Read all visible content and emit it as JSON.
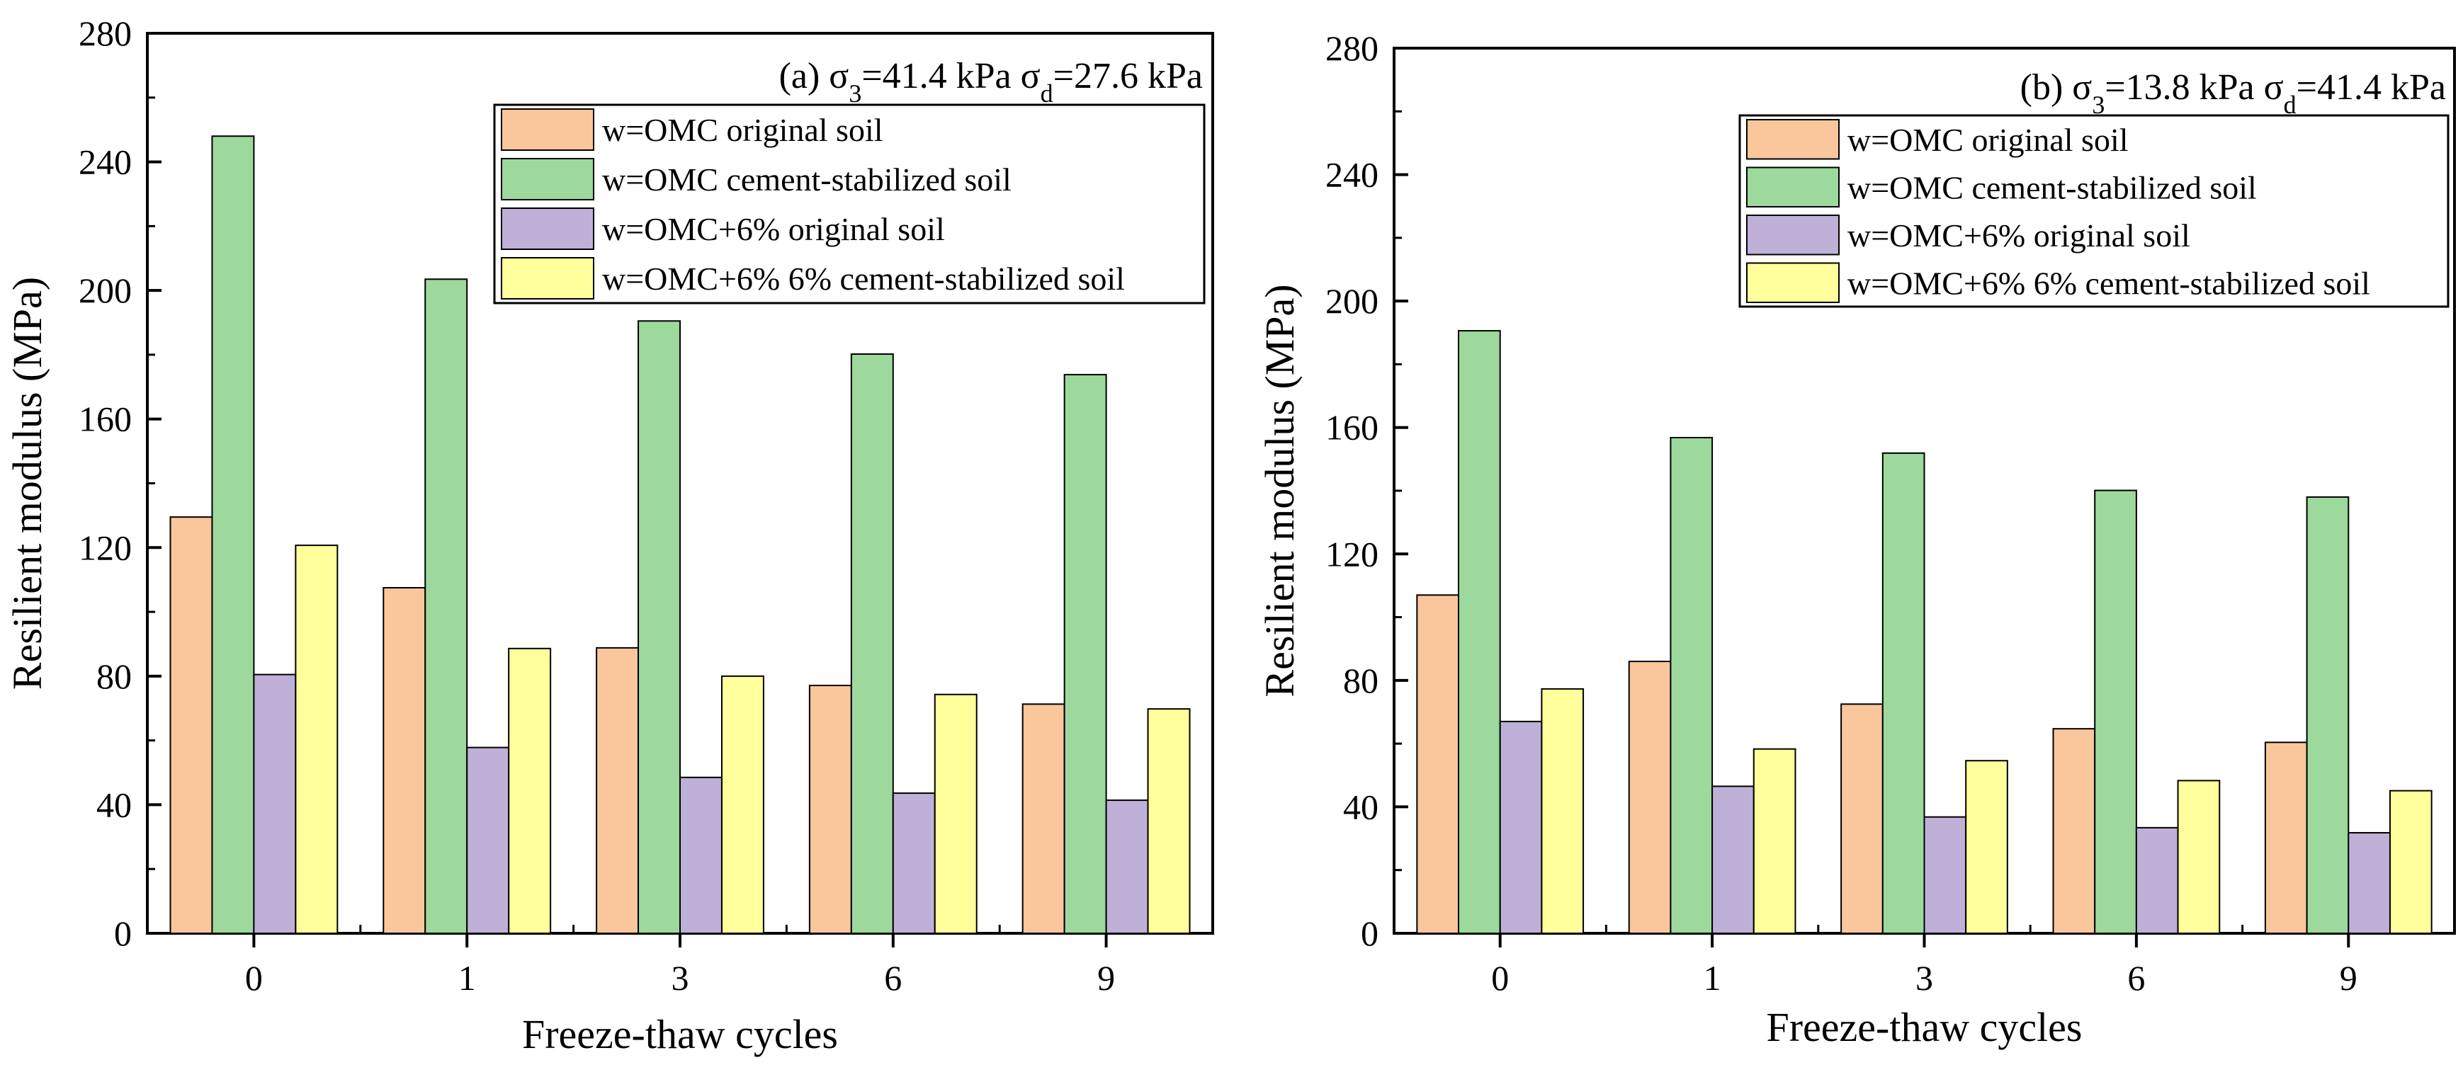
{
  "chart_data": [
    {
      "type": "bar",
      "panel_label": "(a) ",
      "title_parts": [
        "σ",
        "3",
        "=41.4 kPa σ",
        "d",
        "=27.6 kPa"
      ],
      "xlabel": "Freeze-thaw cycles",
      "ylabel": "Resilient modulus (MPa)",
      "categories": [
        "0",
        "1",
        "3",
        "6",
        "9"
      ],
      "ylim": [
        0,
        280
      ],
      "yticks": [
        0,
        40,
        80,
        120,
        160,
        200,
        240,
        280
      ],
      "legend_position": "top-right",
      "series": [
        {
          "name": "w=OMC original soil",
          "color": "#f9c79b",
          "values": [
            129.5,
            107.5,
            88.8,
            77.1,
            71.3
          ]
        },
        {
          "name": "w=OMC cement-stabilized soil",
          "color": "#9dd89c",
          "values": [
            248.0,
            203.5,
            190.5,
            180.2,
            173.8
          ]
        },
        {
          "name": "w=OMC+6% original soil",
          "color": "#bfb0d8",
          "values": [
            80.5,
            57.8,
            48.5,
            43.6,
            41.4
          ]
        },
        {
          "name": "w=OMC+6% 6% cement-stabilized soil",
          "color": "#ffff9b",
          "values": [
            120.7,
            88.6,
            80.0,
            74.3,
            69.8
          ]
        }
      ]
    },
    {
      "type": "bar",
      "panel_label": "(b) ",
      "title_parts": [
        "σ",
        "3",
        "=13.8 kPa σ",
        "d",
        "=41.4 kPa"
      ],
      "xlabel": "Freeze-thaw cycles",
      "ylabel": "Resilient modulus (MPa)",
      "categories": [
        "0",
        "1",
        "3",
        "6",
        "9"
      ],
      "ylim": [
        0,
        280
      ],
      "yticks": [
        0,
        40,
        80,
        120,
        160,
        200,
        240,
        280
      ],
      "legend_position": "top-right",
      "series": [
        {
          "name": "w=OMC original soil",
          "color": "#f9c79b",
          "values": [
            107.0,
            86.0,
            72.5,
            64.7,
            60.4
          ]
        },
        {
          "name": "w=OMC cement-stabilized soil",
          "color": "#9dd89c",
          "values": [
            190.6,
            156.8,
            151.9,
            140.1,
            138.0
          ]
        },
        {
          "name": "w=OMC+6% original soil",
          "color": "#bfb0d8",
          "values": [
            67.0,
            46.5,
            36.8,
            33.4,
            31.8
          ]
        },
        {
          "name": "w=OMC+6% 6% cement-stabilized soil",
          "color": "#ffff9b",
          "values": [
            77.3,
            58.3,
            54.6,
            48.3,
            45.1
          ]
        }
      ]
    }
  ]
}
